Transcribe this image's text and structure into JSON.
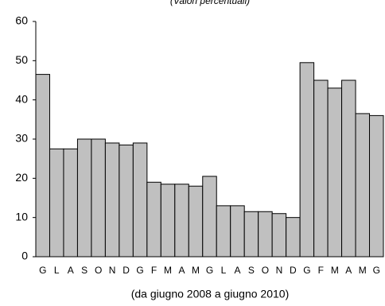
{
  "chart_data": {
    "type": "bar",
    "subtitle": "(Valori percentuali)",
    "x_label": "(da giugno 2008 a giugno 2010)",
    "categories": [
      "G",
      "L",
      "A",
      "S",
      "O",
      "N",
      "D",
      "G",
      "F",
      "M",
      "A",
      "M",
      "G",
      "L",
      "A",
      "S",
      "O",
      "N",
      "D",
      "G",
      "F",
      "M",
      "A",
      "M",
      "G"
    ],
    "values": [
      46.5,
      27.5,
      27.5,
      30,
      30,
      29,
      28.5,
      29,
      19,
      18.5,
      18.5,
      18,
      20.5,
      13,
      13,
      11.5,
      11.5,
      11,
      10,
      49.5,
      45,
      43,
      45,
      36.5,
      36
    ],
    "color": "#c0c0c0",
    "ylim": [
      0,
      60
    ],
    "yticks": [
      0,
      10,
      20,
      30,
      40,
      50,
      60
    ],
    "grid": false
  }
}
